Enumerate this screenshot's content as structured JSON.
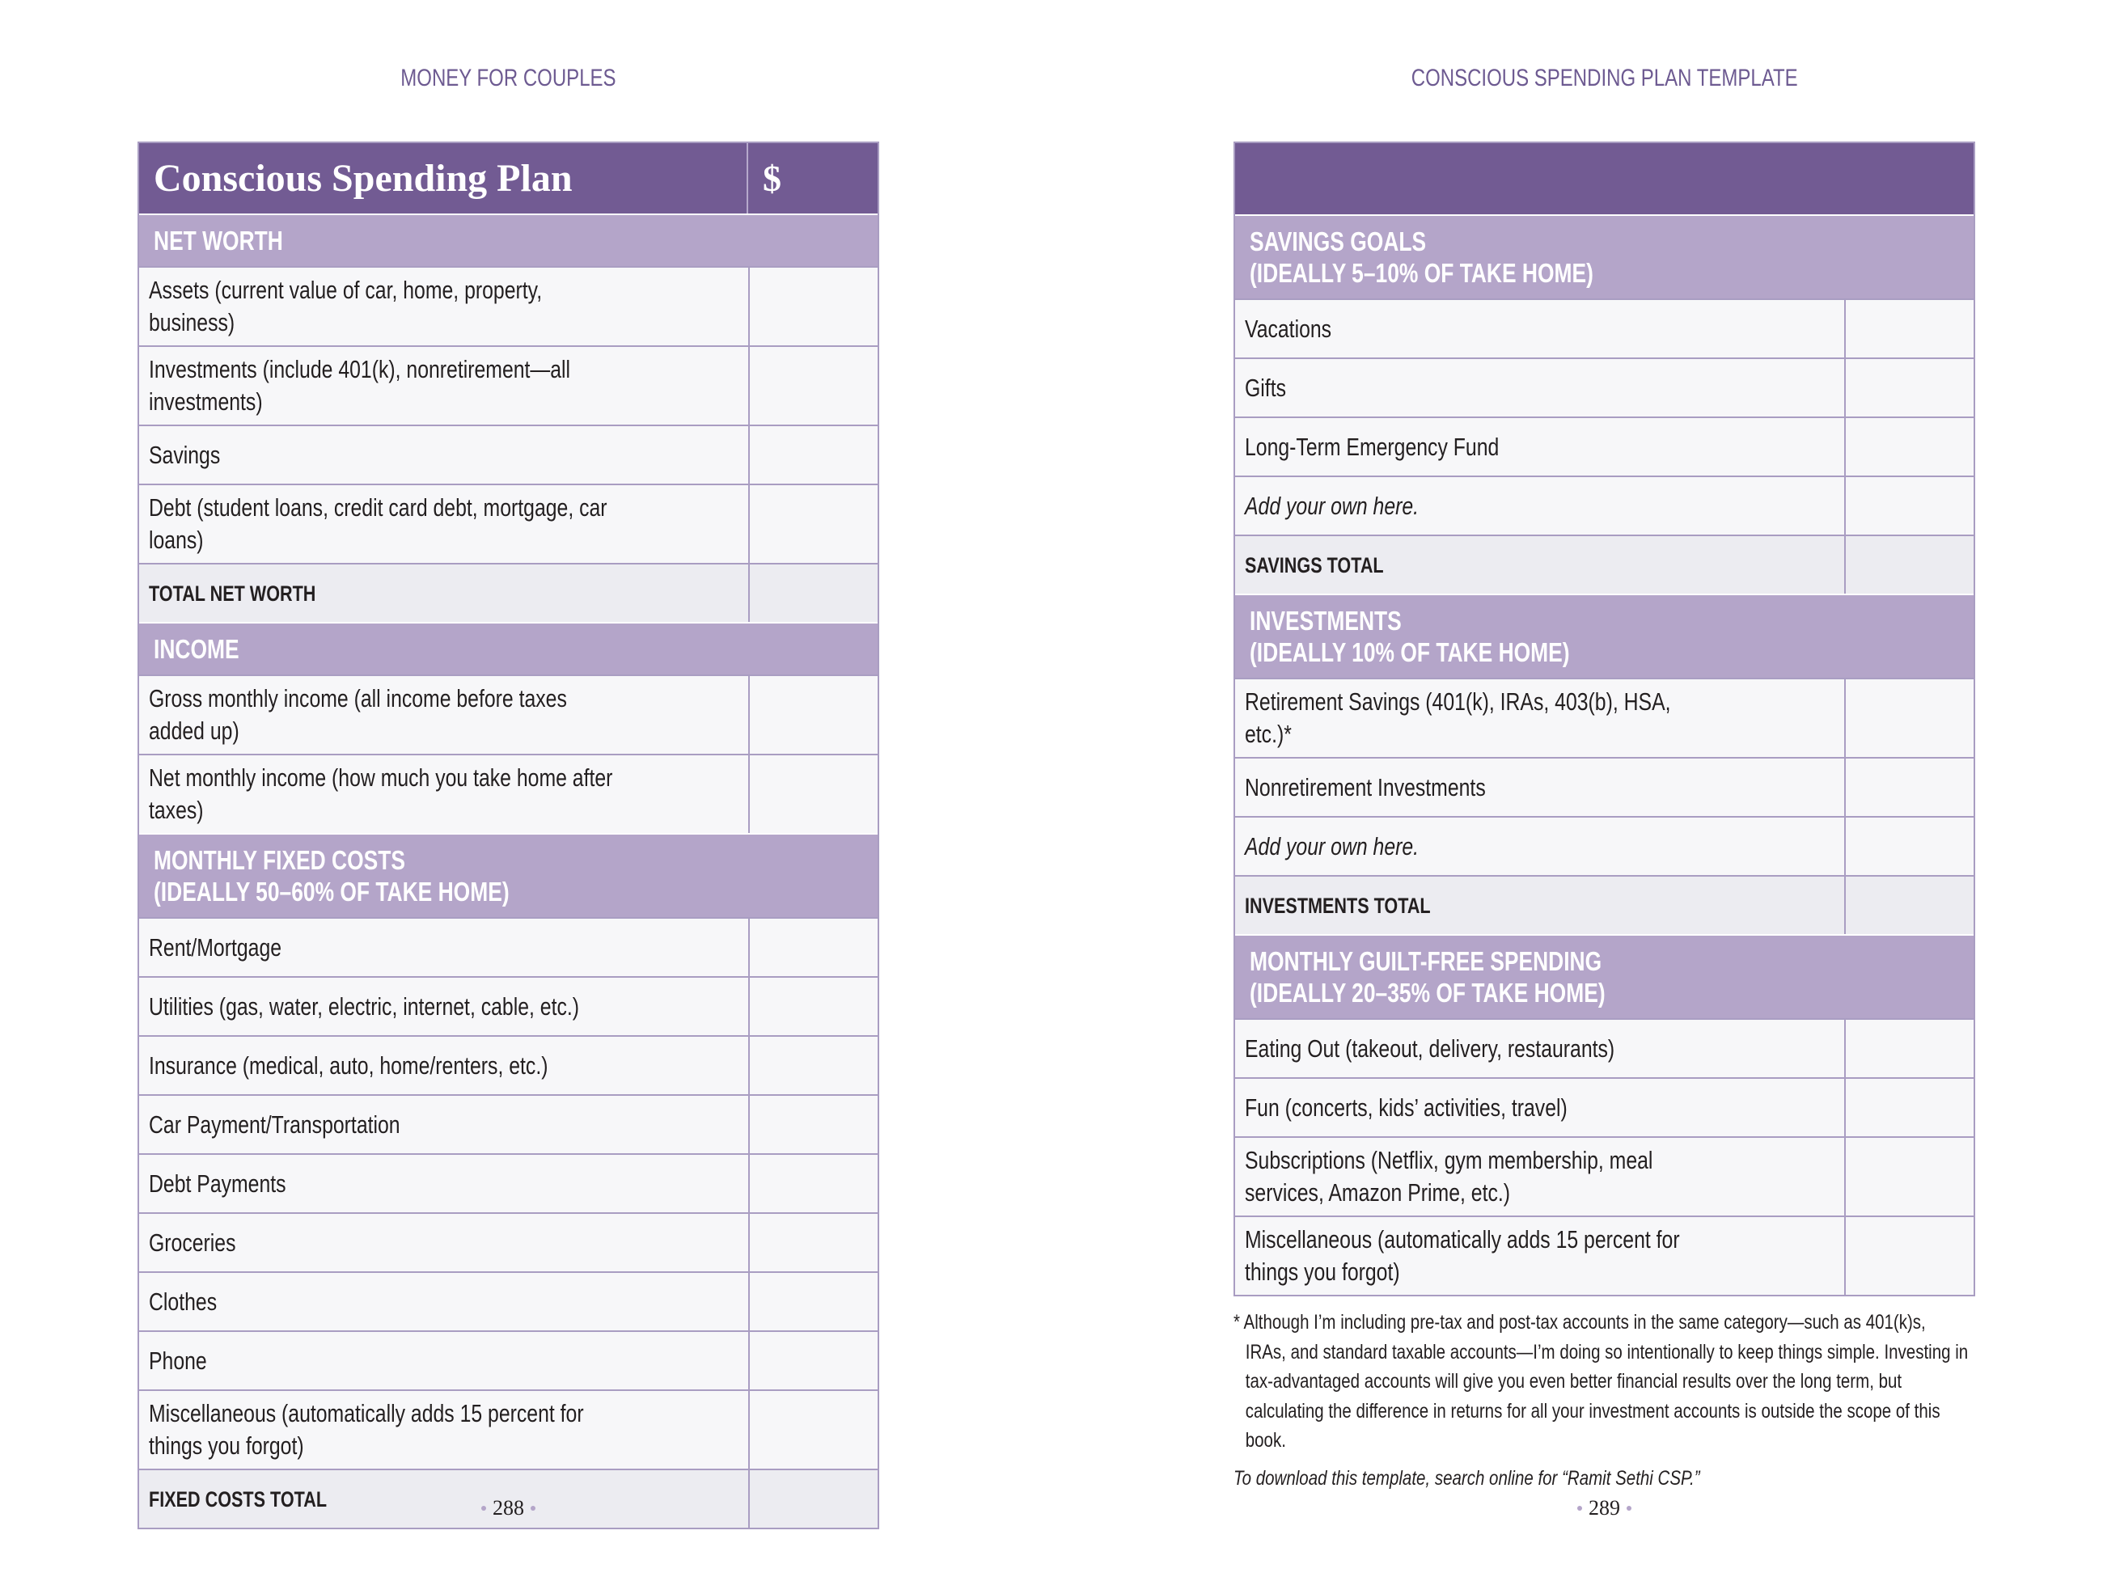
{
  "left_page": {
    "running_head": "MONEY FOR COUPLES",
    "page_number": "288",
    "table": {
      "title": "Conscious Spending Plan",
      "amount_header": "$",
      "sections": [
        {
          "heading": [
            "NET WORTH"
          ],
          "rows": [
            {
              "text": "Assets (current value of car, home, property, business)"
            },
            {
              "text": "Investments (include 401(k), nonretirement—all investments)"
            },
            {
              "text": "Savings"
            },
            {
              "text": "Debt (student loans, credit card debt, mortgage, car loans)"
            }
          ],
          "total": "TOTAL NET WORTH"
        },
        {
          "heading": [
            "INCOME"
          ],
          "rows": [
            {
              "text": "Gross monthly income (all income before taxes added up)"
            },
            {
              "text": "Net monthly income (how much you take home after taxes)"
            }
          ]
        },
        {
          "heading": [
            "MONTHLY FIXED COSTS",
            "(IDEALLY 50–60% OF TAKE HOME)"
          ],
          "rows": [
            {
              "text": "Rent/Mortgage"
            },
            {
              "text": "Utilities (gas, water, electric, internet, cable, etc.)"
            },
            {
              "text": "Insurance (medical, auto, home/renters, etc.)"
            },
            {
              "text": "Car Payment/Transportation"
            },
            {
              "text": "Debt Payments"
            },
            {
              "text": "Groceries"
            },
            {
              "text": "Clothes"
            },
            {
              "text": "Phone"
            },
            {
              "text": "Miscellaneous (automatically adds 15 percent for things you forgot)"
            }
          ],
          "total": "FIXED COSTS TOTAL"
        }
      ]
    }
  },
  "right_page": {
    "running_head": "CONSCIOUS SPENDING PLAN TEMPLATE",
    "page_number": "289",
    "table": {
      "sections": [
        {
          "heading": [
            "SAVINGS GOALS",
            "(IDEALLY 5–10% OF TAKE HOME)"
          ],
          "rows": [
            {
              "text": "Vacations"
            },
            {
              "text": "Gifts"
            },
            {
              "text": "Long-Term Emergency Fund"
            },
            {
              "text": "Add your own here.",
              "italic": true
            }
          ],
          "total": "SAVINGS TOTAL"
        },
        {
          "heading": [
            "INVESTMENTS",
            "(IDEALLY 10% OF TAKE HOME)"
          ],
          "rows": [
            {
              "text": "Retirement Savings (401(k), IRAs, 403(b), HSA, etc.)*"
            },
            {
              "text": "Nonretirement Investments"
            },
            {
              "text": "Add your own here.",
              "italic": true
            }
          ],
          "total": "INVESTMENTS TOTAL"
        },
        {
          "heading": [
            "MONTHLY GUILT-FREE SPENDING",
            "(IDEALLY 20–35% OF TAKE HOME)"
          ],
          "rows": [
            {
              "text": "Eating Out (takeout, delivery, restaurants)"
            },
            {
              "text": "Fun (concerts, kids’ activities, travel)"
            },
            {
              "text": "Subscriptions (Netflix, gym membership, meal services, Amazon Prime, etc.)"
            },
            {
              "text": "Miscellaneous (automatically adds 15 percent for things you forgot)"
            }
          ]
        }
      ]
    },
    "footnote": "* Although I’m including pre-tax and post-tax accounts in the same category—such as 401(k)s, IRAs, and standard taxable accounts—I’m doing so intentionally to keep things simple. Investing in tax-advantaged accounts will give you even better financial results over the long term, but calculating the difference in returns for all your investment accounts is outside the scope of this book.",
    "download_note": "To download this template, search online for “Ramit Sethi CSP.”"
  }
}
